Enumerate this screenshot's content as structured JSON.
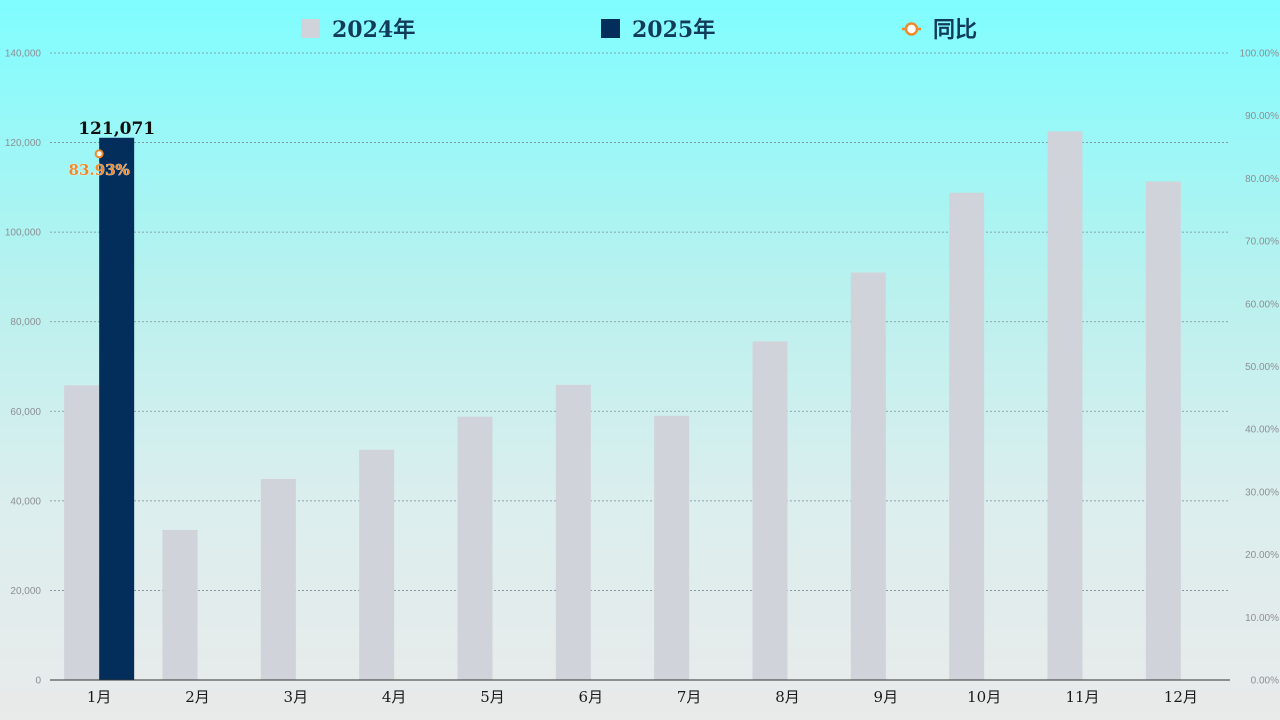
{
  "legend": {
    "items": [
      {
        "label": "2024年",
        "color": "#d0d4da"
      },
      {
        "label": "2025年",
        "color": "#032d5b"
      },
      {
        "label": "同比",
        "color": "#ee8a2a"
      }
    ]
  },
  "chart_data": {
    "type": "bar",
    "title": "",
    "xlabel": "",
    "ylabel": "",
    "categories": [
      "1月",
      "2月",
      "3月",
      "4月",
      "5月",
      "6月",
      "7月",
      "8月",
      "9月",
      "10月",
      "11月",
      "12月"
    ],
    "series": [
      {
        "name": "2024年",
        "color": "#d0d4da",
        "values": [
          65800,
          33500,
          44900,
          51400,
          58800,
          65900,
          59000,
          75600,
          91000,
          108800,
          122500,
          111300
        ]
      },
      {
        "name": "2025年",
        "color": "#032d5b",
        "values": [
          121071,
          null,
          null,
          null,
          null,
          null,
          null,
          null,
          null,
          null,
          null,
          null
        ],
        "data_labels": [
          "121,071",
          "",
          "",
          "",
          "",
          "",
          "",
          "",
          "",
          "",
          "",
          ""
        ]
      },
      {
        "name": "同比",
        "type": "line",
        "axis": "right",
        "color": "#ee8a2a",
        "values": [
          83.93,
          null,
          null,
          null,
          null,
          null,
          null,
          null,
          null,
          null,
          null,
          null
        ],
        "data_labels": [
          "83.93%",
          "",
          "",
          "",
          "",
          "",
          "",
          "",
          "",
          "",
          "",
          ""
        ]
      }
    ],
    "ylim": [
      0,
      140000
    ],
    "y_ticks": [
      "0",
      "20,000",
      "40,000",
      "60,000",
      "80,000",
      "100,000",
      "120,000",
      "140,000"
    ],
    "y2lim": [
      0,
      100
    ],
    "y2_ticks": [
      "0.00%",
      "10.00%",
      "20.00%",
      "30.00%",
      "40.00%",
      "50.00%",
      "60.00%",
      "70.00%",
      "80.00%",
      "90.00%",
      "100.00%"
    ],
    "grid": true,
    "legend_position": "top"
  }
}
